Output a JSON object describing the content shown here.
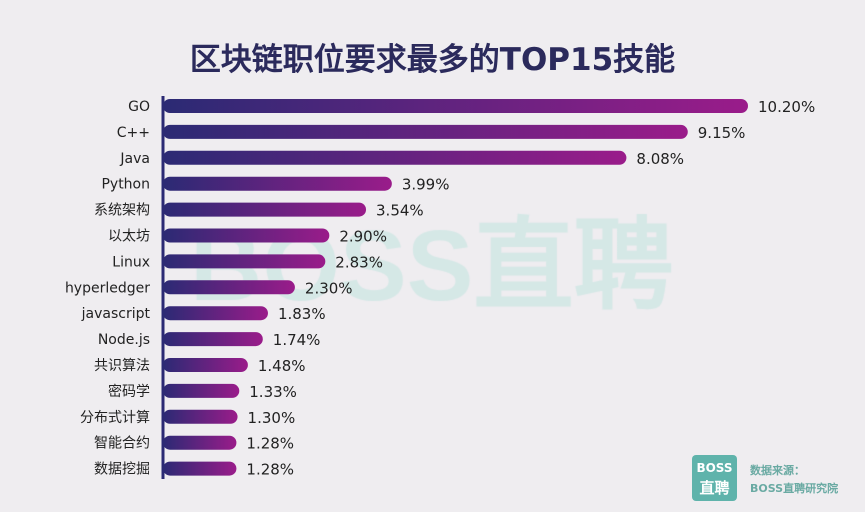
{
  "chart_data": {
    "type": "bar",
    "orientation": "horizontal",
    "title": "区块链职位要求最多的TOP15技能",
    "categories": [
      "GO",
      "C++",
      "Java",
      "Python",
      "系统架构",
      "以太坊",
      "Linux",
      "hyperledger",
      "javascript",
      "Node.js",
      "共识算法",
      "密码学",
      "分布式计算",
      "智能合约",
      "数据挖掘"
    ],
    "values": [
      10.2,
      9.15,
      8.08,
      3.99,
      3.54,
      2.9,
      2.83,
      2.3,
      1.83,
      1.74,
      1.48,
      1.33,
      1.3,
      1.28,
      1.28
    ],
    "data_labels": [
      "10.20%",
      "9.15%",
      "8.08%",
      "3.99%",
      "3.54%",
      "2.90%",
      "2.83%",
      "2.30%",
      "1.83%",
      "1.74%",
      "1.48%",
      "1.33%",
      "1.30%",
      "1.28%",
      "1.28%"
    ],
    "unit": "%",
    "grid": false,
    "colors": {
      "bar_start": "#2b2a74",
      "bar_end": "#9a1c8a",
      "axis": "#2b2a74"
    }
  },
  "watermark": "BOSS直聘",
  "logo": {
    "line1": "BOSS",
    "line2": "直聘"
  },
  "source": {
    "line1": "数据来源：",
    "line2": "BOSS直聘研究院"
  }
}
